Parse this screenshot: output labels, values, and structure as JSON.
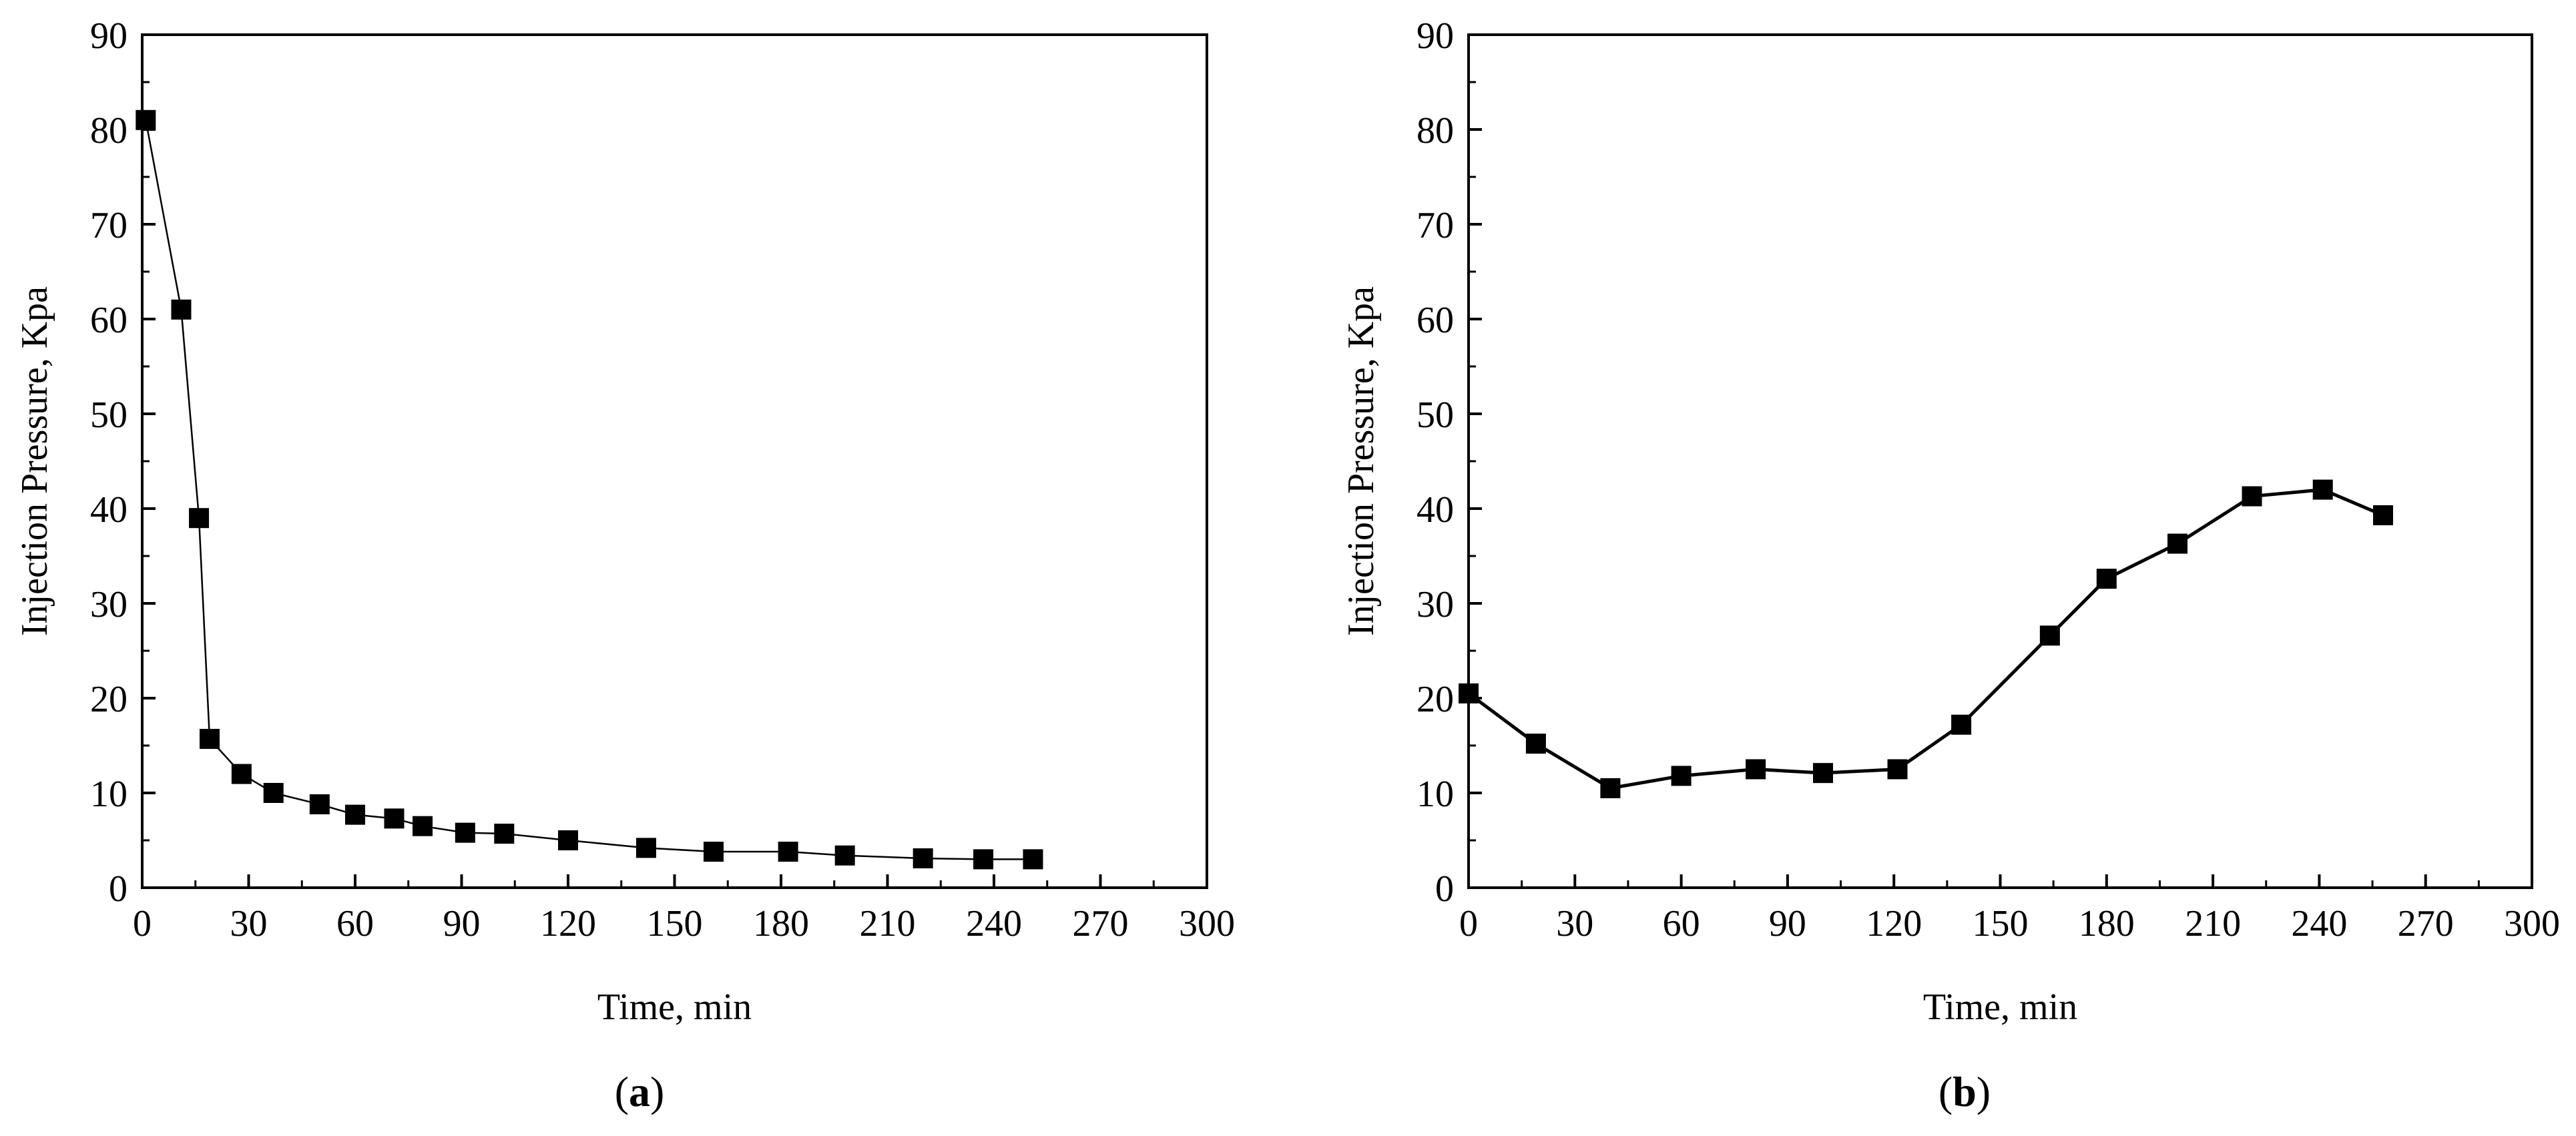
{
  "chart_data": [
    {
      "type": "line",
      "panel_label": "a",
      "xlabel": "Time, min",
      "ylabel": "Injection Pressure, Kpa",
      "xlim": [
        0,
        300
      ],
      "ylim": [
        0,
        90
      ],
      "xticks": [
        0,
        30,
        60,
        90,
        120,
        150,
        180,
        210,
        240,
        270,
        300
      ],
      "yticks": [
        0,
        10,
        20,
        30,
        40,
        50,
        60,
        70,
        80,
        90
      ],
      "grid": false,
      "marker": "square",
      "series": [
        {
          "name": "",
          "color": "#000000",
          "x": [
            1,
            11,
            16,
            19,
            28,
            37,
            50,
            60,
            71,
            79,
            91,
            102,
            120,
            142,
            161,
            182,
            198,
            220,
            237,
            251
          ],
          "y": [
            81,
            61,
            39,
            15.7,
            12,
            10,
            8.8,
            7.7,
            7.3,
            6.5,
            5.8,
            5.7,
            5,
            4.2,
            3.8,
            3.8,
            3.4,
            3.1,
            3.0,
            3.0
          ]
        }
      ]
    },
    {
      "type": "line",
      "panel_label": "b",
      "xlabel": "Time, min",
      "ylabel": "Injection Pressure, Kpa",
      "xlim": [
        0,
        300
      ],
      "ylim": [
        0,
        90
      ],
      "xticks": [
        0,
        30,
        60,
        90,
        120,
        150,
        180,
        210,
        240,
        270,
        300
      ],
      "yticks": [
        0,
        10,
        20,
        30,
        40,
        50,
        60,
        70,
        80,
        90
      ],
      "grid": false,
      "marker": "square",
      "series": [
        {
          "name": "",
          "color": "#000000",
          "x": [
            0,
            19,
            40,
            60,
            81,
            100,
            121,
            139,
            164,
            180,
            200,
            221,
            241,
            258
          ],
          "y": [
            20.5,
            15.2,
            10.5,
            11.8,
            12.5,
            12.1,
            12.5,
            17.2,
            26.6,
            32.6,
            36.3,
            41.3,
            42,
            39.3
          ]
        }
      ]
    }
  ]
}
